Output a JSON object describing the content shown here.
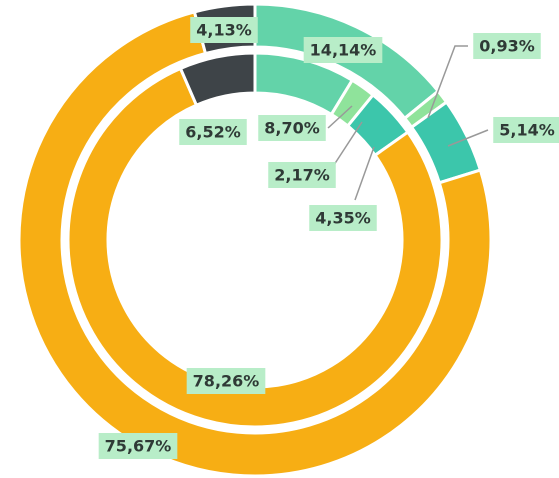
{
  "chart_data": {
    "type": "donut",
    "series": [
      {
        "values": [
          14.14,
          0.93,
          5.14,
          75.67,
          4.13
        ],
        "value_labels": [
          "14,14%",
          "0,93%",
          "5,14%",
          "75,67%",
          "4,13%"
        ],
        "colors": [
          "#63d3a9",
          "#8fe39b",
          "#3cc6ab",
          "#f7ae14",
          "#3e4448"
        ]
      },
      {
        "values": [
          8.7,
          2.17,
          4.35,
          78.26,
          6.52
        ],
        "value_labels": [
          "8,70%",
          "2,17%",
          "4,35%",
          "78,26%",
          "6,52%"
        ],
        "colors": [
          "#63d3a9",
          "#8fe39b",
          "#3cc6ab",
          "#f7ae14",
          "#3e4448"
        ]
      }
    ]
  }
}
